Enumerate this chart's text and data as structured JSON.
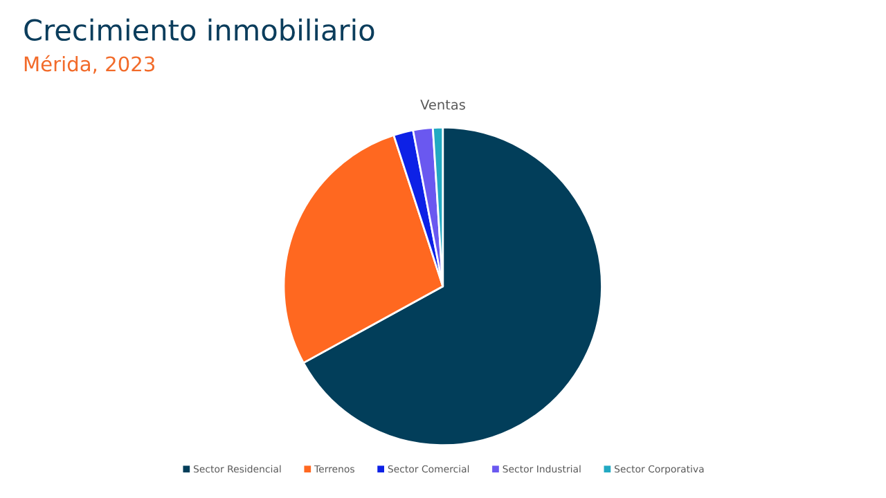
{
  "chart_data": {
    "type": "pie",
    "title": "Crecimiento inmobiliario",
    "subtitle": "Mérida, 2023",
    "annotations": [
      "Ventas"
    ],
    "categories": [
      "Sector Residencial",
      "Terrenos",
      "Sector Comercial",
      "Sector Industrial",
      "Sector Corporativa"
    ],
    "values": [
      67,
      28,
      2,
      2,
      1
    ],
    "colors": [
      "#023e5a",
      "#ff6820",
      "#0d21e6",
      "#6a58f0",
      "#22a9c2"
    ],
    "legend": "bottom"
  }
}
